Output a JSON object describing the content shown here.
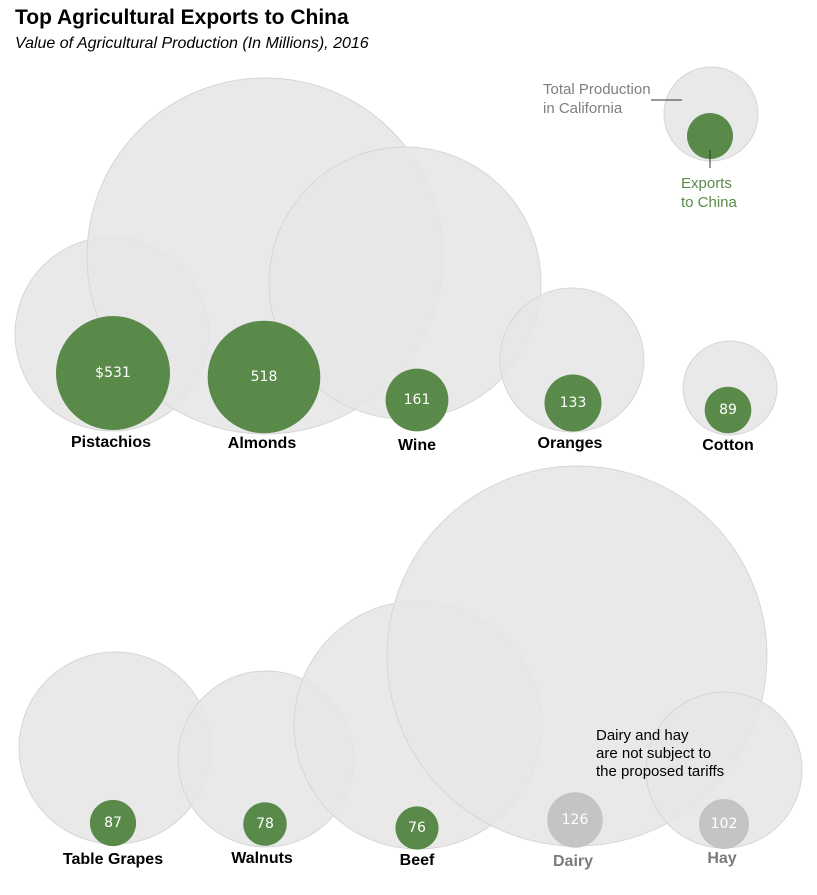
{
  "chart_data": {
    "type": "bubble",
    "title": "Top Agricultural Exports to China",
    "subtitle": "Value of Agricultural Production (In Millions), 2016",
    "units": "USD millions",
    "value_prefix_first": "$",
    "colors": {
      "total": "#e6e6e6",
      "export": "#5a8a4a",
      "exempt": "#c4c4c4",
      "legend_total_text": "#7f7f7f",
      "legend_export_text": "#5a8a4a"
    },
    "legend": {
      "total_label_lines": [
        "Total Production",
        "in California"
      ],
      "export_label_lines": [
        "Exports",
        "to China"
      ],
      "placement": "top-right"
    },
    "note_lines": [
      "Dairy and hay",
      "are not subject to",
      "the proposed tariffs"
    ],
    "items": [
      {
        "name": "Pistachios",
        "export": 531,
        "exempt": false,
        "row": 1
      },
      {
        "name": "Almonds",
        "export": 518,
        "exempt": false,
        "row": 1
      },
      {
        "name": "Wine",
        "export": 161,
        "exempt": false,
        "row": 1
      },
      {
        "name": "Oranges",
        "export": 133,
        "exempt": false,
        "row": 1
      },
      {
        "name": "Cotton",
        "export": 89,
        "exempt": false,
        "row": 1
      },
      {
        "name": "Table Grapes",
        "export": 87,
        "exempt": false,
        "row": 2
      },
      {
        "name": "Walnuts",
        "export": 78,
        "exempt": false,
        "row": 2
      },
      {
        "name": "Beef",
        "export": 76,
        "exempt": false,
        "row": 2
      },
      {
        "name": "Dairy",
        "export": 126,
        "exempt": true,
        "row": 2
      },
      {
        "name": "Hay",
        "export": 102,
        "exempt": true,
        "row": 2
      }
    ]
  }
}
